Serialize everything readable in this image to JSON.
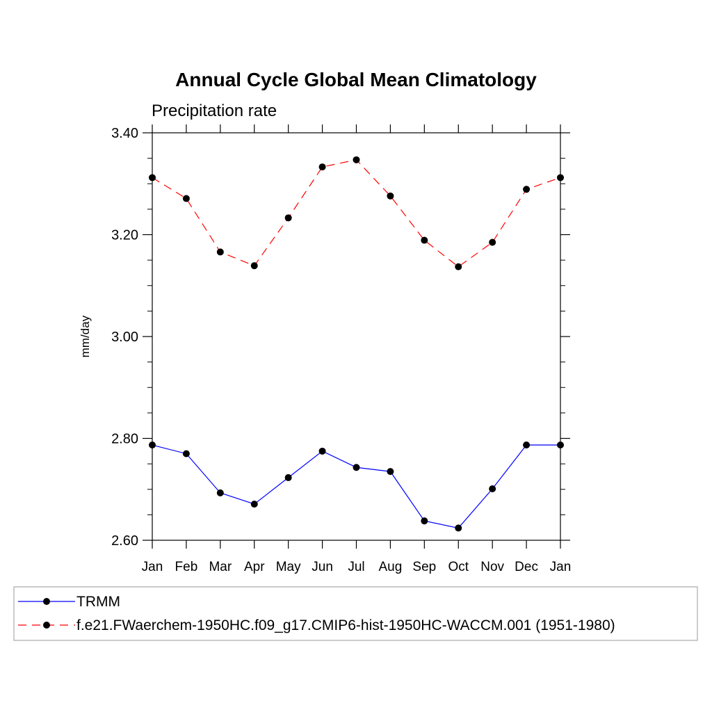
{
  "chart_data": {
    "type": "line",
    "title": "Annual Cycle Global Mean Climatology",
    "subtitle": "Precipitation rate",
    "xlabel": "",
    "ylabel": "mm/day",
    "categories": [
      "Jan",
      "Feb",
      "Mar",
      "Apr",
      "May",
      "Jun",
      "Jul",
      "Aug",
      "Sep",
      "Oct",
      "Nov",
      "Dec",
      "Jan"
    ],
    "ylim": [
      2.6,
      3.4
    ],
    "yticks": [
      2.6,
      2.8,
      3.0,
      3.2,
      3.4
    ],
    "ytick_labels": [
      "2.60",
      "2.80",
      "3.00",
      "3.20",
      "3.40"
    ],
    "yminor_step": 0.05,
    "grid": false,
    "legend_position": "bottom",
    "series": [
      {
        "name": "TRMM",
        "color": "#0000ff",
        "dash": "solid",
        "values": [
          2.787,
          2.77,
          2.693,
          2.671,
          2.723,
          2.775,
          2.743,
          2.735,
          2.638,
          2.624,
          2.701,
          2.787,
          2.787
        ]
      },
      {
        "name": "f.e21.FWaerchem-1950HC.f09_g17.CMIP6-hist-1950HC-WACCM.001 (1951-1980)",
        "color": "#ff0000",
        "dash": "dashed",
        "values": [
          3.312,
          3.271,
          3.166,
          3.139,
          3.233,
          3.333,
          3.347,
          3.276,
          3.189,
          3.137,
          3.185,
          3.289,
          3.312
        ]
      }
    ]
  }
}
